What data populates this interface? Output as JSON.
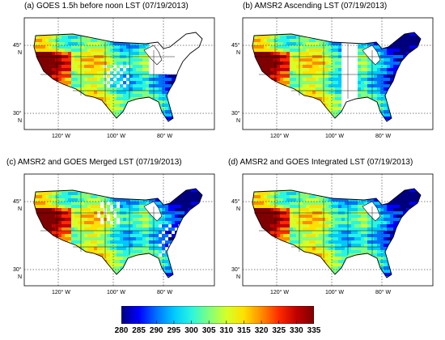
{
  "panels": [
    {
      "title": "(a)  GOES 1.5h before noon  LST (07/19/2013)",
      "coverage": "partial-goes"
    },
    {
      "title": "(b) AMSR2 Ascending LST (07/19/2013)",
      "coverage": "swath-gap"
    },
    {
      "title": "(c) AMSR2 and GOES  Merged  LST (07/19/2013)",
      "coverage": "merged"
    },
    {
      "title": "(d) AMSR2 and GOES Integrated LST (07/19/2013)",
      "coverage": "full"
    }
  ],
  "axes": {
    "lat_labels": [
      {
        "value": "45",
        "suffix": "N"
      },
      {
        "value": "30",
        "suffix": "N"
      }
    ],
    "lon_labels": [
      {
        "value": "120",
        "suffix": "W"
      },
      {
        "value": "100",
        "suffix": "W"
      },
      {
        "value": "80",
        "suffix": "W"
      }
    ]
  },
  "colorbar": {
    "ticks": [
      "280",
      "285",
      "290",
      "295",
      "300",
      "305",
      "310",
      "315",
      "320",
      "325",
      "330",
      "335"
    ],
    "colors": [
      "#00007f",
      "#0000ff",
      "#0070ff",
      "#00c8ff",
      "#2af5e0",
      "#7fff7f",
      "#d5ff29",
      "#ffe000",
      "#ff8c00",
      "#ff2a00",
      "#c00000",
      "#7f0000"
    ]
  }
}
